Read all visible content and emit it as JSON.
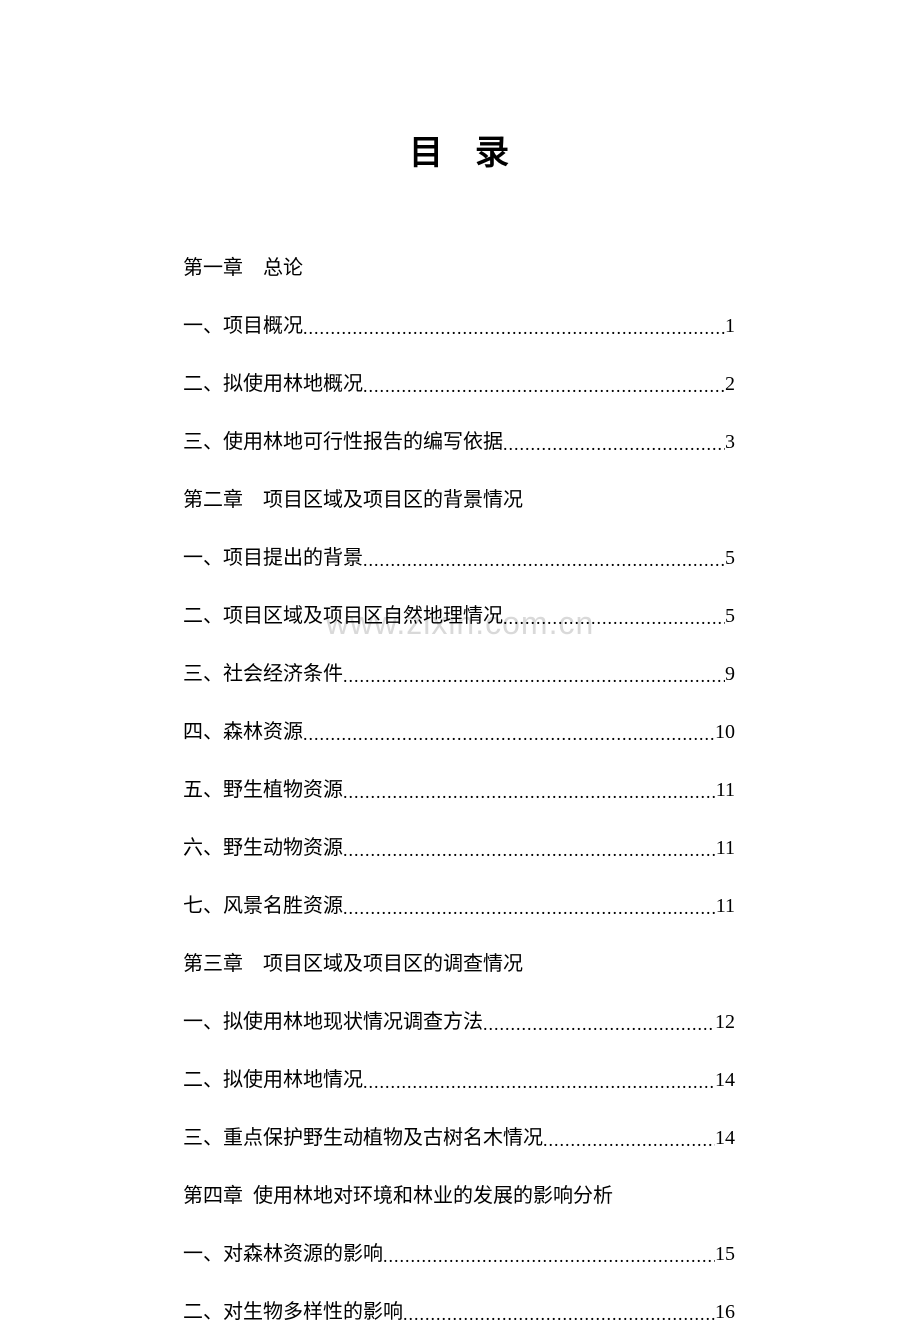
{
  "title": "目录",
  "watermark": "www.zixin.com.cn",
  "toc": [
    {
      "type": "chapter",
      "label": "第一章 总论"
    },
    {
      "type": "entry",
      "label": "一、项目概况",
      "page": "1"
    },
    {
      "type": "entry",
      "label": "二、拟使用林地概况",
      "page": "2"
    },
    {
      "type": "entry",
      "label": "三、使用林地可行性报告的编写依据",
      "page": "3"
    },
    {
      "type": "chapter",
      "label": "第二章 项目区域及项目区的背景情况"
    },
    {
      "type": "entry",
      "label": "一、项目提出的背景",
      "page": "5"
    },
    {
      "type": "entry",
      "label": "二、项目区域及项目区自然地理情况",
      "page": "5"
    },
    {
      "type": "entry",
      "label": "三、社会经济条件",
      "page": "9"
    },
    {
      "type": "entry",
      "label": "四、森林资源",
      "page": "10"
    },
    {
      "type": "entry",
      "label": "五、野生植物资源",
      "page": "11"
    },
    {
      "type": "entry",
      "label": "六、野生动物资源",
      "page": "11"
    },
    {
      "type": "entry",
      "label": "七、风景名胜资源",
      "page": "11"
    },
    {
      "type": "chapter",
      "label": "第三章 项目区域及项目区的调查情况"
    },
    {
      "type": "entry",
      "label": "一、拟使用林地现状情况调查方法",
      "page": "12"
    },
    {
      "type": "entry",
      "label": "二、拟使用林地情况",
      "page": "14"
    },
    {
      "type": "entry",
      "label": "三、重点保护野生动植物及古树名木情况",
      "page": "14"
    },
    {
      "type": "chapter",
      "label": "第四章 使用林地对环境和林业的发展的影响分析"
    },
    {
      "type": "entry",
      "label": "一、对森林资源的影响",
      "page": "15"
    },
    {
      "type": "entry",
      "label": "二、对生物多样性的影响",
      "page": "16"
    }
  ]
}
